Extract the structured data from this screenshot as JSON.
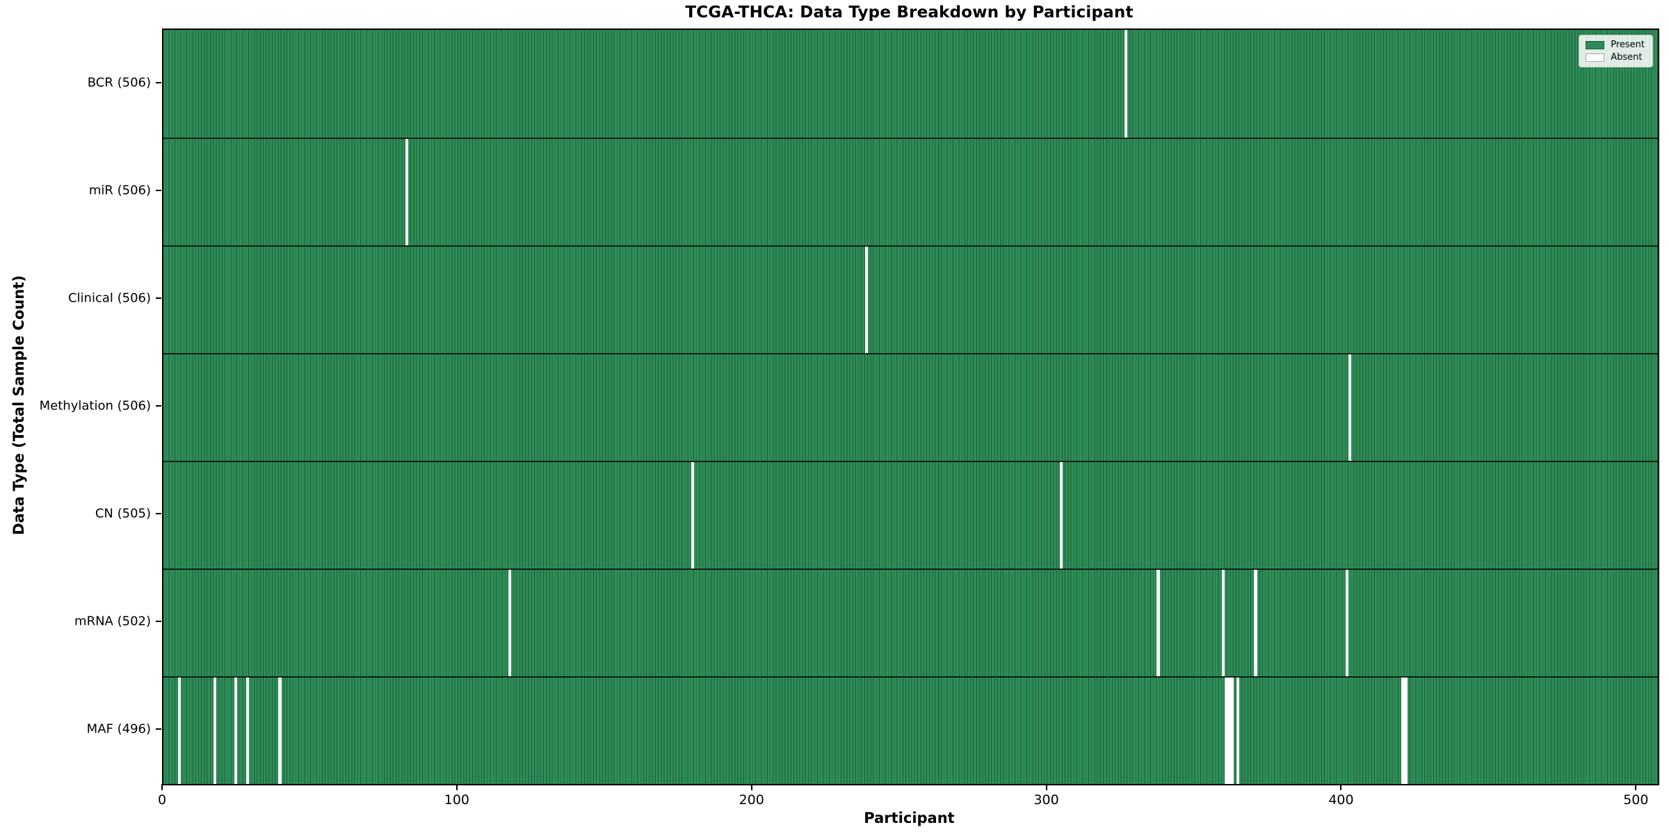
{
  "chart_data": {
    "type": "heatmap",
    "title": "TCGA-THCA: Data Type Breakdown by Participant",
    "xlabel": "Participant",
    "ylabel": "Data Type (Total Sample Count)",
    "x_ticks": [
      0,
      100,
      200,
      300,
      400,
      500
    ],
    "x_range": [
      0,
      507
    ],
    "n_participants": 507,
    "grid": false,
    "legend": {
      "position": "upper right",
      "entries": [
        {
          "label": "Present",
          "color": "#2e8b57",
          "edge": "#1d5c3a"
        },
        {
          "label": "Absent",
          "color": "#ffffff",
          "edge": "#aaaaaa"
        }
      ]
    },
    "colors": {
      "present_fill": "#2e8e58",
      "present_edge": "#1d5c3a",
      "absent_fill": "#ffffff",
      "axis": "#000000"
    },
    "rows": [
      {
        "label": "BCR (506)",
        "data_type": "BCR",
        "total": 506,
        "absent_participants": [
          326
        ]
      },
      {
        "label": "miR (506)",
        "data_type": "miR",
        "total": 506,
        "absent_participants": [
          82
        ]
      },
      {
        "label": "Clinical (506)",
        "data_type": "Clinical",
        "total": 506,
        "absent_participants": [
          238
        ]
      },
      {
        "label": "Methylation (506)",
        "data_type": "Methylation",
        "total": 506,
        "absent_participants": [
          402
        ]
      },
      {
        "label": "CN (505)",
        "data_type": "CN",
        "total": 505,
        "absent_participants": [
          179,
          304
        ]
      },
      {
        "label": "mRNA (502)",
        "data_type": "mRNA",
        "total": 502,
        "absent_participants": [
          117,
          337,
          359,
          370,
          401
        ]
      },
      {
        "label": "MAF (496)",
        "data_type": "MAF",
        "total": 496,
        "absent_participants": [
          5,
          17,
          24,
          28,
          39,
          360,
          361,
          362,
          364,
          420,
          421
        ]
      }
    ]
  }
}
